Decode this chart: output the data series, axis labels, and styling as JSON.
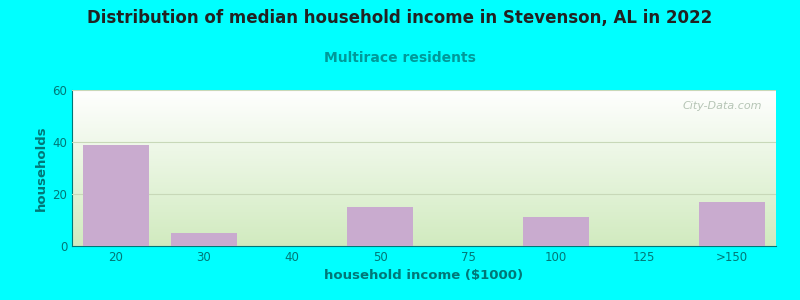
{
  "title": "Distribution of median household income in Stevenson, AL in 2022",
  "subtitle": "Multirace residents",
  "xlabel": "household income ($1000)",
  "ylabel": "households",
  "background_color": "#00FFFF",
  "bar_color": "#C9ABCF",
  "bar_edge_color": "#B898C8",
  "categories": [
    "20",
    "30",
    "40",
    "50",
    "75",
    "100",
    "125",
    ">150"
  ],
  "values": [
    39,
    5,
    0,
    15,
    0,
    11,
    0,
    17
  ],
  "ylim": [
    0,
    60
  ],
  "yticks": [
    0,
    20,
    40,
    60
  ],
  "watermark": "City-Data.com",
  "title_fontsize": 12,
  "subtitle_fontsize": 10,
  "title_color": "#222222",
  "subtitle_color": "#009999",
  "ylabel_color": "#007777",
  "xlabel_color": "#007777",
  "tick_color": "#007777",
  "grid_color": "#C8D8B8",
  "plot_bg_top_color": "#F8FFF8",
  "plot_bg_bottom_color": "#D0E8C0",
  "plot_bg_right_color": "#FFFFFF"
}
